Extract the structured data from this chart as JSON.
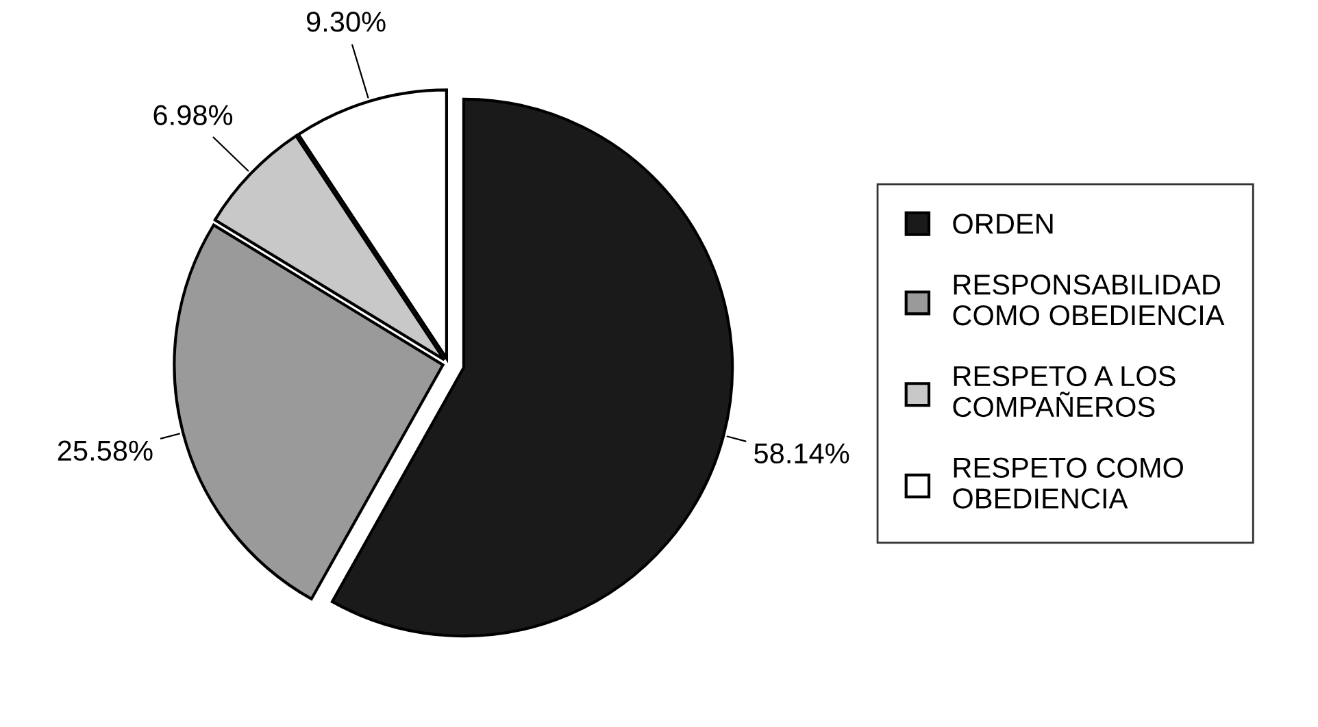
{
  "chart_data": {
    "type": "pie",
    "categories": [
      "ORDEN",
      "RESPONSABILIDAD\nCOMO OBEDIENCIA",
      "RESPETO A LOS\nCOMPAÑEROS",
      "RESPETO COMO\nOBEDIENCIA"
    ],
    "values": [
      58.14,
      25.58,
      6.98,
      9.3
    ],
    "value_labels": [
      "58.14%",
      "25.58%",
      "6.98%",
      "9.30%"
    ],
    "colors": [
      "#1a1a1a",
      "#9a9a9a",
      "#c8c8c8",
      "#ffffff"
    ],
    "legend": "right"
  }
}
